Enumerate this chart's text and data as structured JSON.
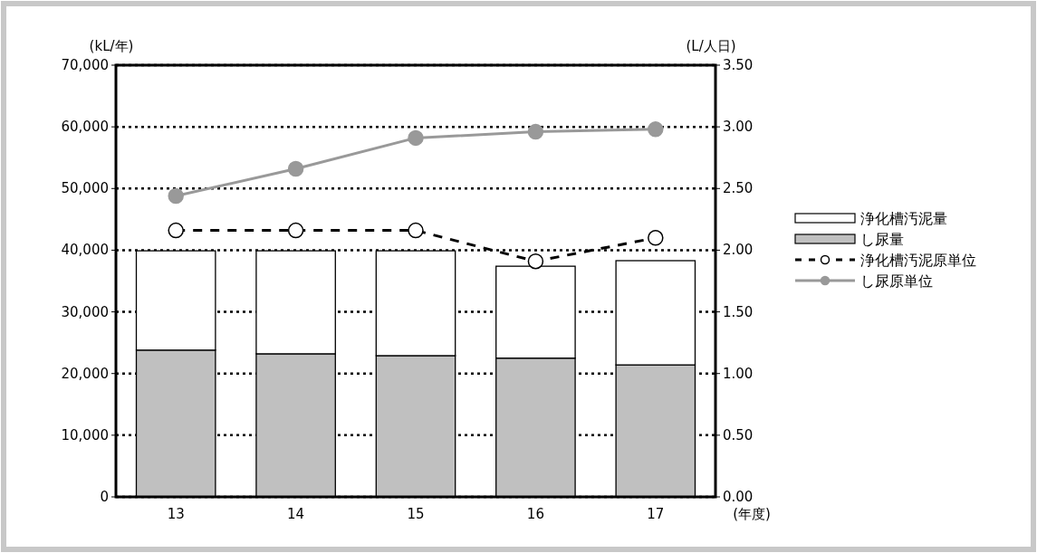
{
  "chart_data": {
    "type": "bar",
    "stacked": true,
    "ylabel": "(kL/年)",
    "y2label": "(L/人日)",
    "xlabel": "(年度)",
    "categories": [
      "13",
      "14",
      "15",
      "16",
      "17"
    ],
    "series": [
      {
        "name": "し尿量",
        "color": "#c0c0c0",
        "values": [
          23800,
          23200,
          22900,
          22500,
          21400
        ]
      },
      {
        "name": "浄化槽汚泥量",
        "color": "#ffffff",
        "values": [
          16100,
          16700,
          17000,
          14900,
          16900
        ]
      },
      {
        "name": "浄化槽汚泥原単位",
        "type": "line",
        "axis": "y2",
        "color": "#000000",
        "line_style": "dashed",
        "marker": "circle",
        "values": [
          2.16,
          2.16,
          2.16,
          1.91,
          2.1
        ]
      },
      {
        "name": "し尿原単位",
        "type": "line",
        "axis": "y2",
        "color": "#999999",
        "line_style": "solid",
        "marker": "circle",
        "values": [
          2.44,
          2.66,
          2.91,
          2.96,
          2.98
        ]
      }
    ],
    "ylim": [
      0,
      70000
    ],
    "yticks": [
      {
        "value": 0,
        "label": "0"
      },
      {
        "value": 10000,
        "label": "10,000"
      },
      {
        "value": 20000,
        "label": "20,000"
      },
      {
        "value": 30000,
        "label": "30,000"
      },
      {
        "value": 40000,
        "label": "40,000"
      },
      {
        "value": 50000,
        "label": "50,000"
      },
      {
        "value": 60000,
        "label": "60,000"
      },
      {
        "value": 70000,
        "label": "70,000"
      }
    ],
    "y2lim": [
      0,
      3.5
    ],
    "y2ticks": [
      {
        "value": 0,
        "label": "0.00"
      },
      {
        "value": 0.5,
        "label": "0.50"
      },
      {
        "value": 1,
        "label": "1.00"
      },
      {
        "value": 1.5,
        "label": "1.50"
      },
      {
        "value": 2,
        "label": "2.00"
      },
      {
        "value": 2.5,
        "label": "2.50"
      },
      {
        "value": 3,
        "label": "3.00"
      },
      {
        "value": 3.5,
        "label": "3.50"
      }
    ],
    "grid": "y",
    "legend": "right"
  }
}
